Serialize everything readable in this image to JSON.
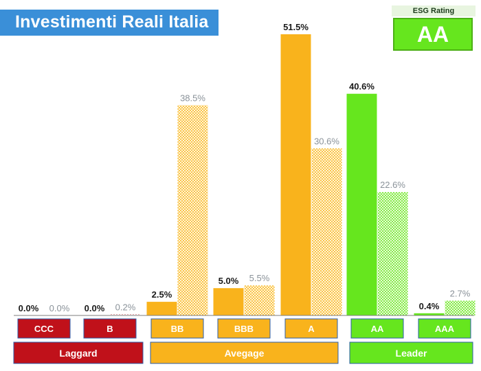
{
  "title": "Investimenti Reali Italia",
  "esg_rating": {
    "label": "ESG Rating",
    "value": "AA",
    "color": "#66e61e"
  },
  "colors": {
    "laggard": "#c0111a",
    "average": "#f9b31c",
    "leader": "#66e61e",
    "dark_label": "#1a1a1a",
    "light_label": "#8a9299"
  },
  "chart_data": {
    "type": "bar",
    "title": "Investimenti Reali Italia",
    "categories": [
      "CCC",
      "B",
      "BB",
      "BBB",
      "A",
      "AA",
      "AAA"
    ],
    "series": [
      {
        "values": [
          0.0,
          0.0,
          2.5,
          5.0,
          51.5,
          40.6,
          0.4
        ],
        "labels": [
          "0.0%",
          "0.0%",
          "2.5%",
          "5.0%",
          "51.5%",
          "40.6%",
          "0.4%"
        ]
      },
      {
        "values": [
          0.0,
          0.2,
          38.5,
          5.5,
          30.6,
          22.6,
          2.7
        ],
        "labels": [
          "0.0%",
          "0.2%",
          "38.5%",
          "5.5%",
          "30.6%",
          "22.6%",
          "2.7%"
        ]
      }
    ],
    "groups": [
      {
        "label": "Laggard",
        "categories": [
          "CCC",
          "B"
        ],
        "color": "#c0111a"
      },
      {
        "label": "Avegage",
        "categories": [
          "BB",
          "BBB",
          "A"
        ],
        "color": "#f9b31c"
      },
      {
        "label": "Leader",
        "categories": [
          "AA",
          "AAA"
        ],
        "color": "#66e61e"
      }
    ],
    "ylim": [
      0,
      53
    ],
    "grid": false,
    "xlabel": "",
    "ylabel": ""
  }
}
